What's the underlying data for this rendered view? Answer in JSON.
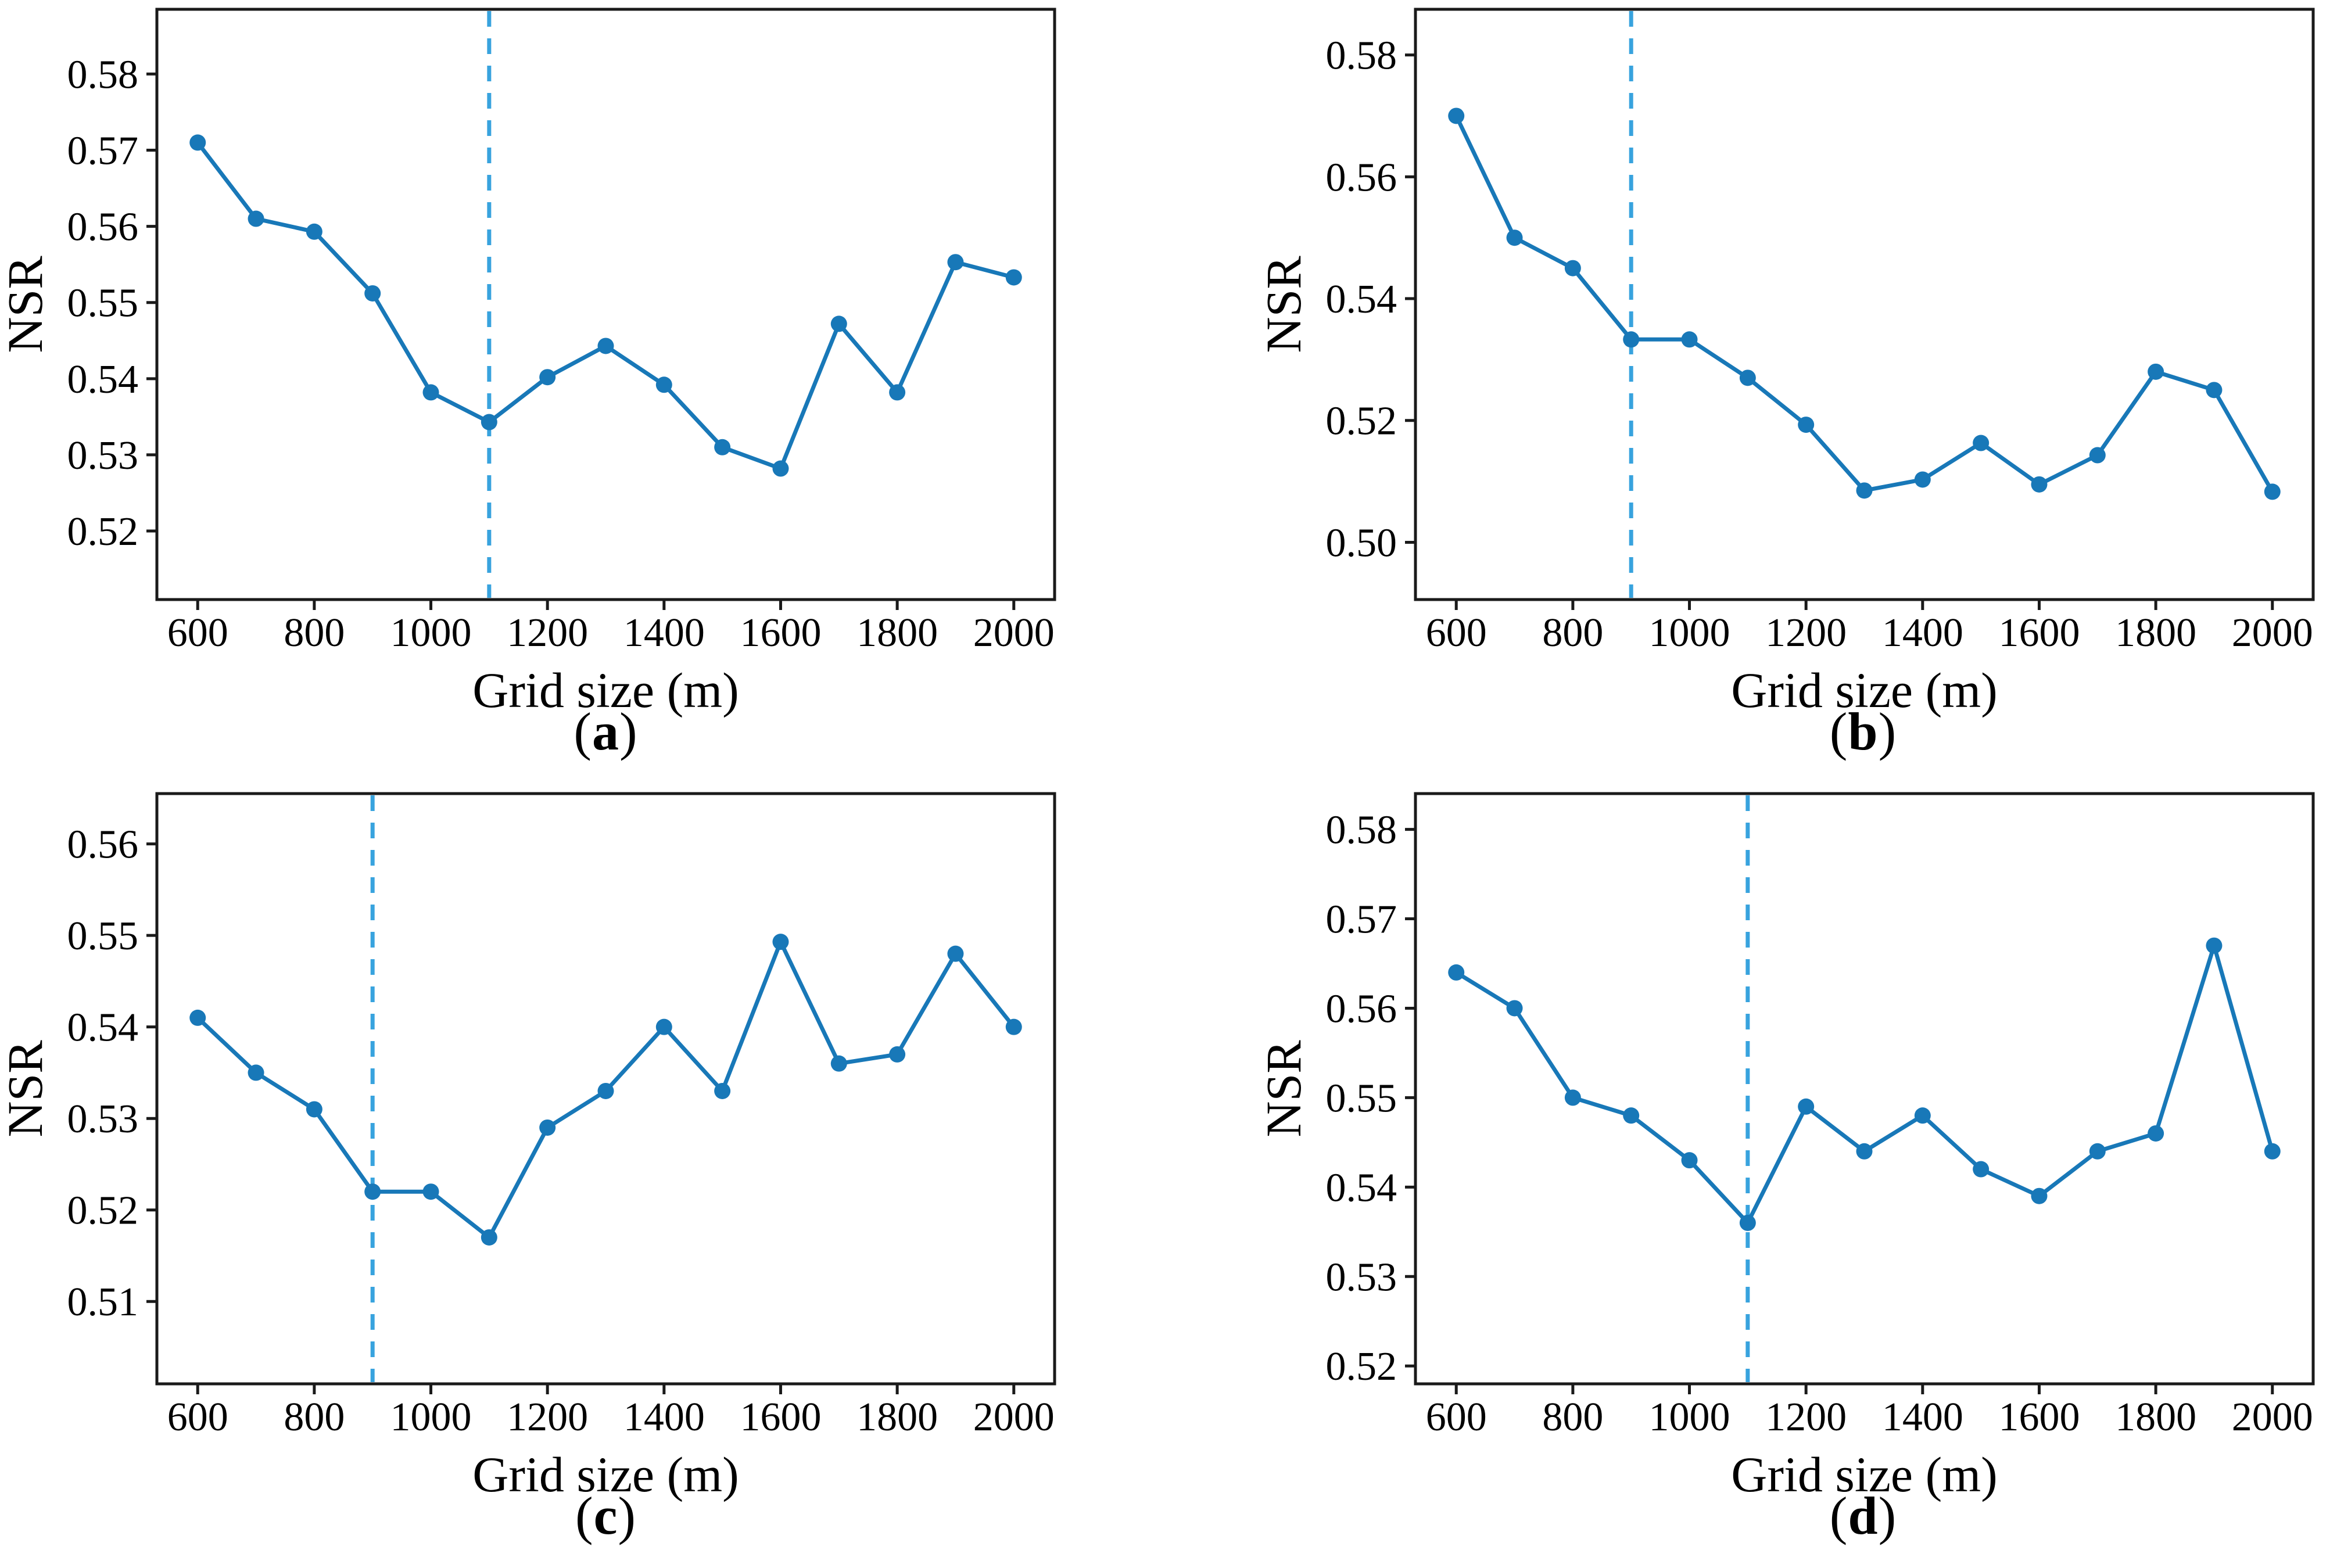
{
  "figure": {
    "background": "#ffffff",
    "axis_color": "#1a1a1a",
    "text_color": "#000000",
    "line_color": "#1878b8",
    "vline_color": "#38a3de",
    "xlabel": "Grid size (m)",
    "ylabel": "NSR"
  },
  "chart_data": [
    {
      "id": "a",
      "type": "line",
      "caption": {
        "open": "(",
        "letter": "a",
        "close": ")"
      },
      "title": "",
      "xlabel": "Grid size (m)",
      "ylabel": "NSR",
      "marker": "circle",
      "grid": false,
      "legend": "none",
      "x": [
        600,
        700,
        800,
        900,
        1000,
        1100,
        1200,
        1300,
        1400,
        1500,
        1600,
        1700,
        1800,
        1900,
        2000
      ],
      "values": [
        0.571,
        0.561,
        0.5593,
        0.5512,
        0.5382,
        0.5343,
        0.5402,
        0.5443,
        0.5392,
        0.531,
        0.5282,
        0.5472,
        0.5382,
        0.5553,
        0.5533
      ],
      "vline_x": 1100,
      "vline_style": "dashed",
      "xlim": [
        530,
        2070
      ],
      "ylim": [
        0.511,
        0.5885
      ],
      "xticks": [
        600,
        800,
        1000,
        1200,
        1400,
        1600,
        1800,
        2000
      ],
      "yticks": [
        0.52,
        0.53,
        0.54,
        0.55,
        0.56,
        0.57,
        0.58
      ]
    },
    {
      "id": "b",
      "type": "line",
      "caption": {
        "open": "(",
        "letter": "b",
        "close": ")"
      },
      "title": "",
      "xlabel": "Grid size (m)",
      "ylabel": "NSR",
      "marker": "circle",
      "grid": false,
      "legend": "none",
      "x": [
        600,
        700,
        800,
        900,
        1000,
        1100,
        1200,
        1300,
        1400,
        1500,
        1600,
        1700,
        1800,
        1900,
        2000
      ],
      "values": [
        0.57,
        0.55,
        0.545,
        0.5333,
        0.5333,
        0.527,
        0.5193,
        0.5085,
        0.5103,
        0.5163,
        0.5095,
        0.5143,
        0.528,
        0.525,
        0.5083
      ],
      "vline_x": 900,
      "vline_style": "dashed",
      "xlim": [
        530,
        2070
      ],
      "ylim": [
        0.4906,
        0.5875
      ],
      "xticks": [
        600,
        800,
        1000,
        1200,
        1400,
        1600,
        1800,
        2000
      ],
      "yticks": [
        0.5,
        0.52,
        0.54,
        0.56,
        0.58
      ]
    },
    {
      "id": "c",
      "type": "line",
      "caption": {
        "open": "(",
        "letter": "c",
        "close": ")"
      },
      "title": "",
      "xlabel": "Grid size (m)",
      "ylabel": "NSR",
      "marker": "circle",
      "grid": false,
      "legend": "none",
      "x": [
        600,
        700,
        800,
        900,
        1000,
        1100,
        1200,
        1300,
        1400,
        1500,
        1600,
        1700,
        1800,
        1900,
        2000
      ],
      "values": [
        0.541,
        0.535,
        0.531,
        0.522,
        0.522,
        0.517,
        0.529,
        0.533,
        0.54,
        0.533,
        0.5493,
        0.536,
        0.537,
        0.548,
        0.54
      ],
      "vline_x": 900,
      "vline_style": "dashed",
      "xlim": [
        530,
        2070
      ],
      "ylim": [
        0.501,
        0.5655
      ],
      "xticks": [
        600,
        800,
        1000,
        1200,
        1400,
        1600,
        1800,
        2000
      ],
      "yticks": [
        0.51,
        0.52,
        0.53,
        0.54,
        0.55,
        0.56
      ]
    },
    {
      "id": "d",
      "type": "line",
      "caption": {
        "open": "(",
        "letter": "d",
        "close": ")"
      },
      "title": "",
      "xlabel": "Grid size (m)",
      "ylabel": "NSR",
      "marker": "circle",
      "grid": false,
      "legend": "none",
      "x": [
        600,
        700,
        800,
        900,
        1000,
        1100,
        1200,
        1300,
        1400,
        1500,
        1600,
        1700,
        1800,
        1900,
        2000
      ],
      "values": [
        0.564,
        0.56,
        0.55,
        0.548,
        0.543,
        0.536,
        0.549,
        0.544,
        0.548,
        0.542,
        0.539,
        0.544,
        0.546,
        0.567,
        0.544
      ],
      "vline_x": 1100,
      "vline_style": "dashed",
      "xlim": [
        530,
        2070
      ],
      "ylim": [
        0.518,
        0.584
      ],
      "xticks": [
        600,
        800,
        1000,
        1200,
        1400,
        1600,
        1800,
        2000
      ],
      "yticks": [
        0.52,
        0.53,
        0.54,
        0.55,
        0.56,
        0.57,
        0.58
      ]
    }
  ]
}
